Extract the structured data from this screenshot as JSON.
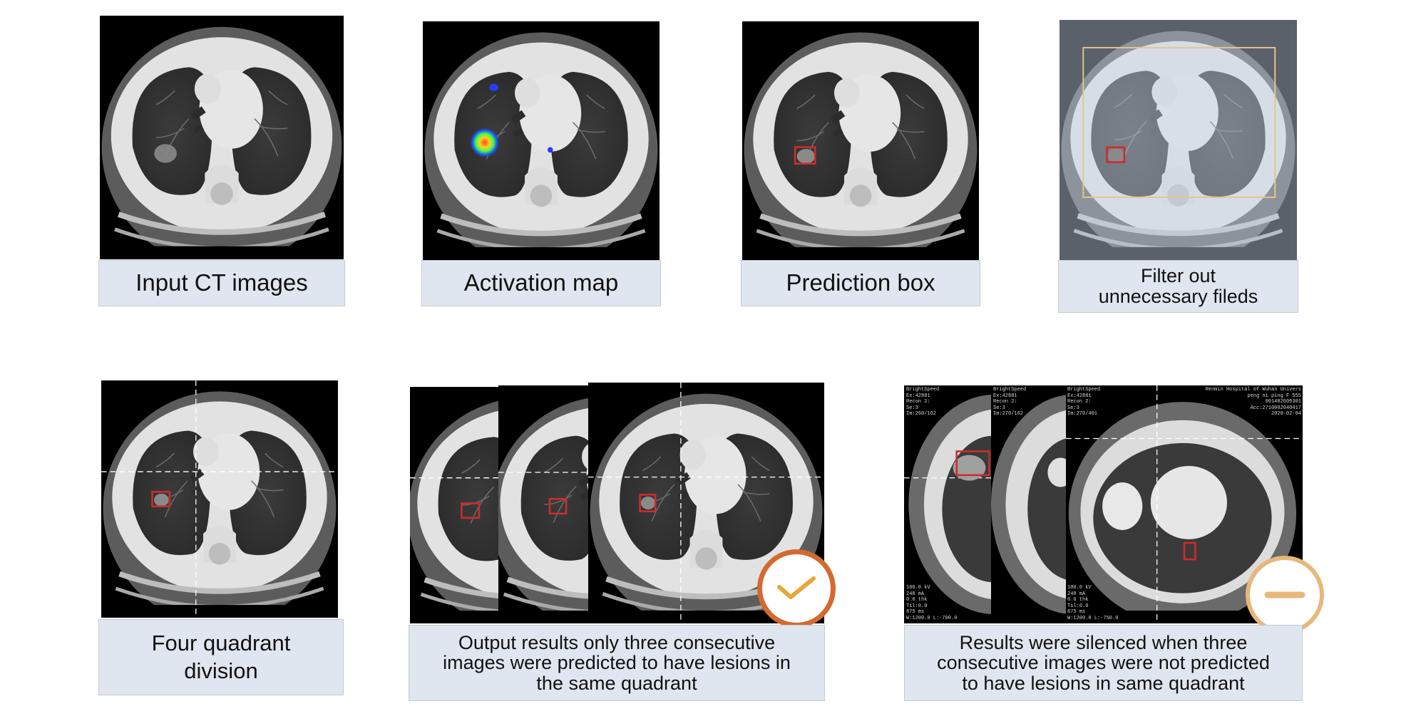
{
  "top_row": {
    "input_label": "Input CT images",
    "activation_label": "Activation map",
    "prediction_label": "Prediction box",
    "filter_label_line1": "Filter out",
    "filter_label_line2": "unnecessary fileds"
  },
  "bottom_row": {
    "quadrant_label_line1": "Four quadrant",
    "quadrant_label_line2": "division",
    "output_label_line1": "Output results only three consecutive",
    "output_label_line2": "images were predicted to have lesions in",
    "output_label_line3": "the same quadrant",
    "silenced_label_line1": "Results were silenced when three",
    "silenced_label_line2": "consecutive images were not predicted",
    "silenced_label_line3": "to have lesions in same quadrant"
  },
  "ct_overlay": {
    "scanner": "BrightSpeed",
    "exam": "Ex:42881",
    "recon": "Recon 2:",
    "series": "Se:3",
    "image_1": "Im:260/162",
    "image_2": "Im:270/162",
    "image_3": "Im:270/401",
    "hospital_1": "Renmin Hospital of Wuhan Univers",
    "hospital_2": "peng ni ping F 555",
    "hospital_3": "001482609301",
    "acc": "Acc:2710002040417",
    "date": "2020-02-04",
    "kv": "100.0 kV",
    "ma": "248 mA",
    "thk": "0.6 thk",
    "tilt": "Til:0.0",
    "ms": "875 ms",
    "wl": "W:1200.0 L:-700.0",
    "wl2": "W:1200.0 L:-750.0"
  },
  "colors": {
    "label_bg": "#dfe6ef",
    "box_red": "#cf2b2b",
    "check_orange": "#d46a2f",
    "minus_orange": "#e8b77a"
  },
  "icons": {
    "check": "checkmark-icon",
    "minus": "minus-icon"
  }
}
